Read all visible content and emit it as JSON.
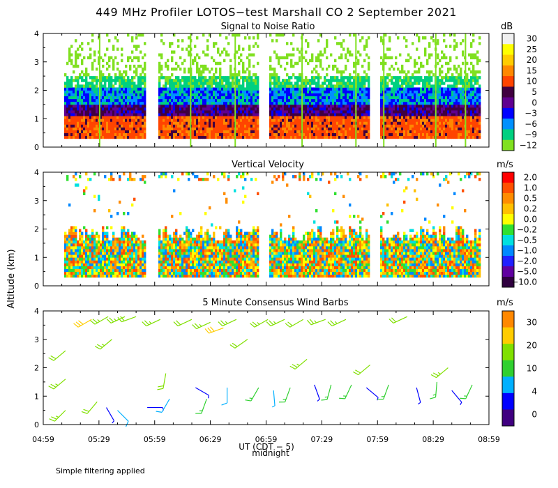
{
  "title": "449 MHz Profiler LOTOS−test Marshall CO  2 September 2021",
  "y_axis_label": "Altitude (km)",
  "x_axis_label": "UT  (CDT − 5)",
  "midnight_label": "midnight",
  "footnote": "Simple filtering applied",
  "colors": {
    "snr": [
      "#f0f0f0",
      "#ffff00",
      "#ffcc00",
      "#ff8800",
      "#ff4400",
      "#400040",
      "#600090",
      "#0000ff",
      "#0090ff",
      "#00d080",
      "#80e020"
    ],
    "vv": [
      "#ff0000",
      "#ff5000",
      "#ff8c00",
      "#ffc000",
      "#ffff00",
      "#30e030",
      "#00e0e0",
      "#0088ff",
      "#2020ff",
      "#6000a0",
      "#300040"
    ],
    "wind": [
      "#ff0000",
      "#ff8800",
      "#ffcc00",
      "#80e000",
      "#30d030",
      "#00b0ff",
      "#0000ff",
      "#400080"
    ]
  },
  "chart_data": [
    {
      "type": "heatmap",
      "title": "Signal to Noise Ratio",
      "units": "dB",
      "ylabel": "Altitude (km)",
      "ylim": [
        0,
        4
      ],
      "yticks": [
        0,
        1,
        2,
        3,
        4
      ],
      "xlim_minutes": [
        0,
        240
      ],
      "xtick_labels": [
        "04:59",
        "05:29",
        "05:59",
        "06:29",
        "06:59",
        "07:29",
        "07:59",
        "08:29",
        "08:59"
      ],
      "colorbar_labels": [
        "30",
        "25",
        "20",
        "15",
        "10",
        "5",
        "0",
        "−3",
        "−6",
        "−9",
        "−12"
      ],
      "data_gaps_minutes": [
        [
          0,
          11
        ],
        [
          55,
          61
        ],
        [
          115,
          121
        ],
        [
          175,
          181
        ],
        [
          235,
          240
        ]
      ],
      "vertical_streaks_minutes": [
        30,
        79,
        103,
        139,
        168,
        183,
        211,
        227
      ],
      "layers_km": [
        {
          "bottom": 0.3,
          "top": 1.0,
          "level": "10"
        },
        {
          "bottom": 1.0,
          "top": 1.5,
          "level": "5"
        },
        {
          "bottom": 1.5,
          "top": 2.2,
          "level": "−3"
        },
        {
          "bottom": 2.2,
          "top": 3.3,
          "level": "−9"
        }
      ]
    },
    {
      "type": "heatmap",
      "title": "Vertical Velocity",
      "units": "m/s",
      "ylabel": "Altitude (km)",
      "ylim": [
        0,
        4
      ],
      "yticks": [
        0,
        1,
        2,
        3,
        4
      ],
      "xlim_minutes": [
        0,
        240
      ],
      "xtick_labels": [
        "04:59",
        "05:29",
        "05:59",
        "06:29",
        "06:59",
        "07:29",
        "07:59",
        "08:29",
        "08:59"
      ],
      "colorbar_labels": [
        "2.0",
        "1.0",
        "0.5",
        "0.2",
        "0.0",
        "−0.2",
        "−0.5",
        "−1.0",
        "−2.0",
        "−5.0",
        "−10.0"
      ],
      "data_gaps_minutes": [
        [
          0,
          11
        ],
        [
          55,
          61
        ],
        [
          115,
          121
        ],
        [
          175,
          181
        ],
        [
          235,
          240
        ]
      ],
      "main_layer_km": [
        0.3,
        2.1
      ]
    },
    {
      "type": "scatter",
      "title": "5 Minute Consensus Wind Barbs",
      "units": "m/s",
      "ylabel": "Altitude (km)",
      "ylim": [
        0,
        4
      ],
      "yticks": [
        0,
        1,
        2,
        3,
        4
      ],
      "xlim_minutes": [
        0,
        240
      ],
      "xtick_labels": [
        "04:59",
        "05:29",
        "05:59",
        "06:29",
        "06:59",
        "07:29",
        "07:59",
        "08:29",
        "08:59"
      ],
      "colorbar_labels": [
        "30",
        "20",
        "10",
        "4",
        "0"
      ],
      "barbs": [
        {
          "t": 12,
          "h": 0.5,
          "speed": 12,
          "dir": 225
        },
        {
          "t": 12,
          "h": 1.6,
          "speed": 12,
          "dir": 230
        },
        {
          "t": 12,
          "h": 2.6,
          "speed": 11,
          "dir": 230
        },
        {
          "t": 26,
          "h": 3.7,
          "speed": 15,
          "dir": 240
        },
        {
          "t": 29,
          "h": 0.8,
          "speed": 10,
          "dir": 220
        },
        {
          "t": 34,
          "h": 0.6,
          "speed": 3,
          "dir": 150
        },
        {
          "t": 35,
          "h": 3.8,
          "speed": 13,
          "dir": 240
        },
        {
          "t": 37,
          "h": 3.0,
          "speed": 12,
          "dir": 230
        },
        {
          "t": 40,
          "h": 0.5,
          "speed": 5,
          "dir": 135
        },
        {
          "t": 44,
          "h": 3.8,
          "speed": 12,
          "dir": 245
        },
        {
          "t": 50,
          "h": 3.8,
          "speed": 11,
          "dir": 250
        },
        {
          "t": 56,
          "h": 0.6,
          "speed": 2,
          "dir": 90
        },
        {
          "t": 63,
          "h": 3.7,
          "speed": 12,
          "dir": 245
        },
        {
          "t": 66,
          "h": 1.8,
          "speed": 10,
          "dir": 190
        },
        {
          "t": 68,
          "h": 0.9,
          "speed": 5,
          "dir": 210
        },
        {
          "t": 80,
          "h": 3.7,
          "speed": 11,
          "dir": 245
        },
        {
          "t": 82,
          "h": 1.3,
          "speed": 3,
          "dir": 120
        },
        {
          "t": 88,
          "h": 0.9,
          "speed": 9,
          "dir": 200
        },
        {
          "t": 90,
          "h": 3.6,
          "speed": 12,
          "dir": 245
        },
        {
          "t": 97,
          "h": 3.4,
          "speed": 16,
          "dir": 250
        },
        {
          "t": 99,
          "h": 1.3,
          "speed": 6,
          "dir": 180
        },
        {
          "t": 104,
          "h": 3.7,
          "speed": 14,
          "dir": 245
        },
        {
          "t": 110,
          "h": 3.0,
          "speed": 10,
          "dir": 235
        },
        {
          "t": 116,
          "h": 1.3,
          "speed": 7,
          "dir": 210
        },
        {
          "t": 121,
          "h": 3.7,
          "speed": 13,
          "dir": 240
        },
        {
          "t": 124,
          "h": 1.2,
          "speed": 4,
          "dir": 175
        },
        {
          "t": 130,
          "h": 3.7,
          "speed": 12,
          "dir": 245
        },
        {
          "t": 133,
          "h": 1.3,
          "speed": 8,
          "dir": 200
        },
        {
          "t": 140,
          "h": 3.7,
          "speed": 11,
          "dir": 240
        },
        {
          "t": 142,
          "h": 2.3,
          "speed": 12,
          "dir": 230
        },
        {
          "t": 146,
          "h": 1.4,
          "speed": 3,
          "dir": 160
        },
        {
          "t": 152,
          "h": 3.7,
          "speed": 12,
          "dir": 250
        },
        {
          "t": 155,
          "h": 1.4,
          "speed": 9,
          "dir": 195
        },
        {
          "t": 163,
          "h": 3.7,
          "speed": 13,
          "dir": 245
        },
        {
          "t": 166,
          "h": 1.4,
          "speed": 7,
          "dir": 205
        },
        {
          "t": 174,
          "h": 1.3,
          "speed": 2,
          "dir": 130
        },
        {
          "t": 176,
          "h": 2.1,
          "speed": 11,
          "dir": 230
        },
        {
          "t": 186,
          "h": 1.4,
          "speed": 7,
          "dir": 200
        },
        {
          "t": 196,
          "h": 3.8,
          "speed": 11,
          "dir": 245
        },
        {
          "t": 201,
          "h": 1.3,
          "speed": 3,
          "dir": 165
        },
        {
          "t": 212,
          "h": 1.5,
          "speed": 8,
          "dir": 185
        },
        {
          "t": 218,
          "h": 2.0,
          "speed": 12,
          "dir": 230
        },
        {
          "t": 220,
          "h": 1.2,
          "speed": 2,
          "dir": 140
        },
        {
          "t": 231,
          "h": 1.4,
          "speed": 7,
          "dir": 205
        }
      ]
    }
  ]
}
